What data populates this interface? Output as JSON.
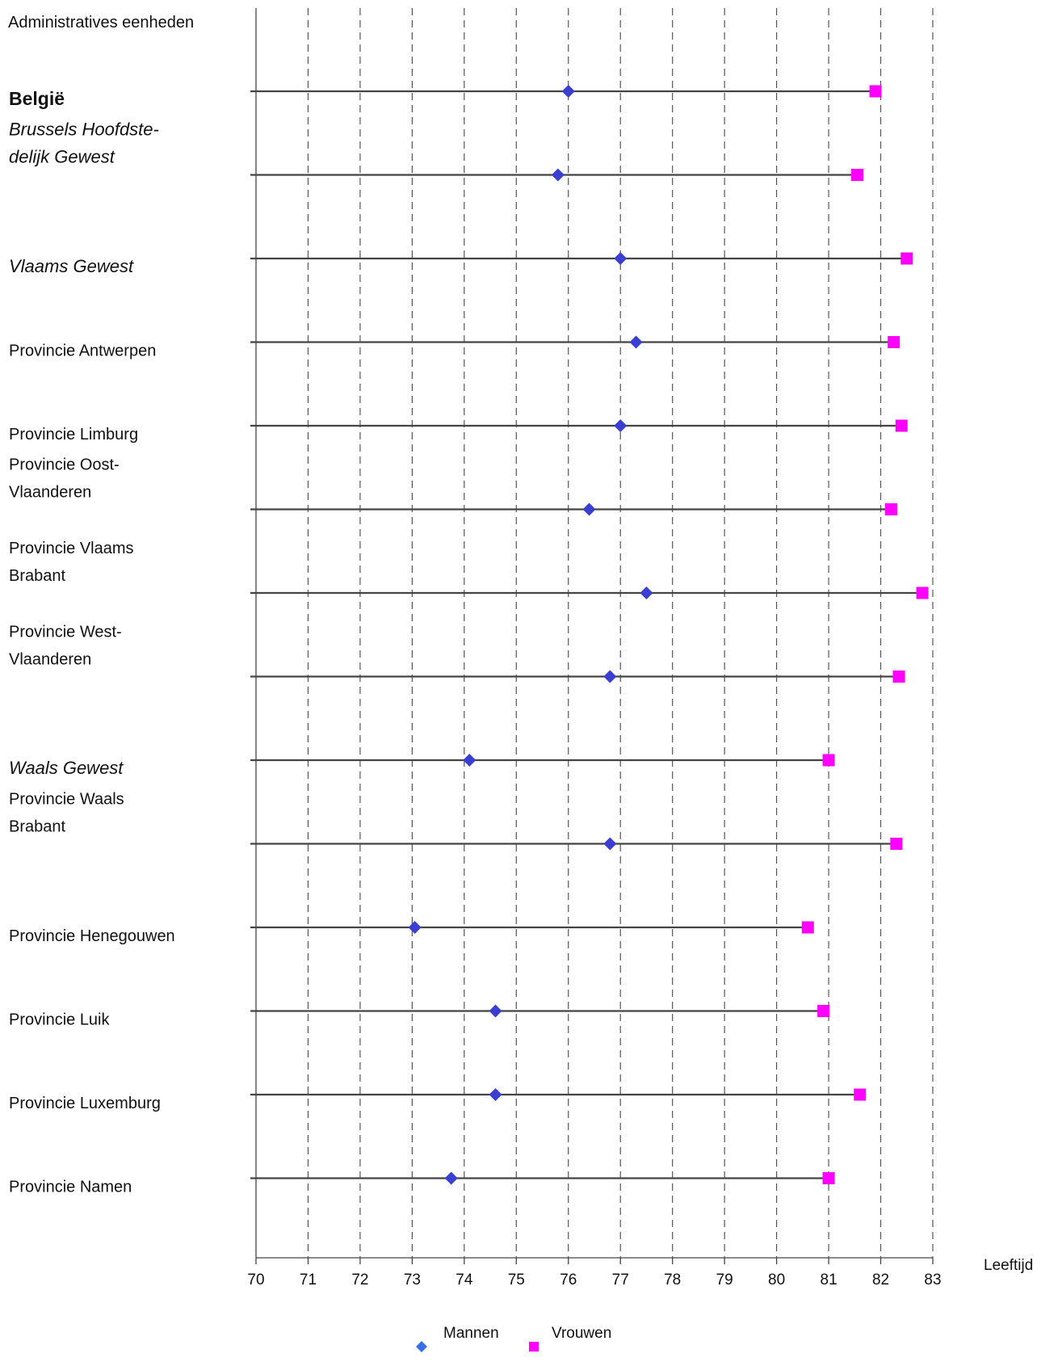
{
  "chart_data": {
    "type": "dot-range",
    "header": "Administratives eenheden",
    "xlabel": "Leeftijd",
    "xlim": [
      70,
      83
    ],
    "xticks": [
      70,
      71,
      72,
      73,
      74,
      75,
      76,
      77,
      78,
      79,
      80,
      81,
      82,
      83
    ],
    "grid": "vertical dashed",
    "legend": "bottom-center",
    "series": [
      {
        "name": "Mannen",
        "marker": "diamond",
        "color": "#3a3fd1"
      },
      {
        "name": "Vrouwen",
        "marker": "square",
        "color": "#ff00ff"
      }
    ],
    "categories": [
      {
        "lines": [
          "België"
        ],
        "style": "bold",
        "mannen": 76.0,
        "vrouwen": 81.9
      },
      {
        "lines": [
          "Brussels Hoofdste-",
          "delijk Gewest"
        ],
        "style": "italic",
        "mannen": 75.8,
        "vrouwen": 81.55
      },
      {
        "lines": [
          "Vlaams Gewest"
        ],
        "style": "italic",
        "mannen": 77.0,
        "vrouwen": 82.5
      },
      {
        "lines": [
          "Provincie Antwerpen"
        ],
        "style": "normal",
        "mannen": 77.3,
        "vrouwen": 82.25
      },
      {
        "lines": [
          "Provincie Limburg"
        ],
        "style": "normal",
        "mannen": 77.0,
        "vrouwen": 82.4
      },
      {
        "lines": [
          "Provincie Oost-",
          "Vlaanderen"
        ],
        "style": "normal",
        "mannen": 76.4,
        "vrouwen": 82.2
      },
      {
        "lines": [
          "Provincie Vlaams",
          "Brabant"
        ],
        "style": "normal",
        "mannen": 77.5,
        "vrouwen": 82.8
      },
      {
        "lines": [
          "Provincie West-",
          "Vlaanderen"
        ],
        "style": "normal",
        "mannen": 76.8,
        "vrouwen": 82.35
      },
      {
        "lines": [
          "Waals Gewest"
        ],
        "style": "italic",
        "mannen": 74.1,
        "vrouwen": 81.0
      },
      {
        "lines": [
          "Provincie Waals",
          "Brabant"
        ],
        "style": "normal",
        "mannen": 76.8,
        "vrouwen": 82.3
      },
      {
        "lines": [
          "Provincie Henegouwen"
        ],
        "style": "normal",
        "mannen": 73.05,
        "vrouwen": 80.6
      },
      {
        "lines": [
          "Provincie Luik"
        ],
        "style": "normal",
        "mannen": 74.6,
        "vrouwen": 80.9
      },
      {
        "lines": [
          "Provincie Luxemburg"
        ],
        "style": "normal",
        "mannen": 74.6,
        "vrouwen": 81.6
      },
      {
        "lines": [
          "Provincie Namen"
        ],
        "style": "normal",
        "mannen": 73.75,
        "vrouwen": 81.0
      }
    ]
  }
}
